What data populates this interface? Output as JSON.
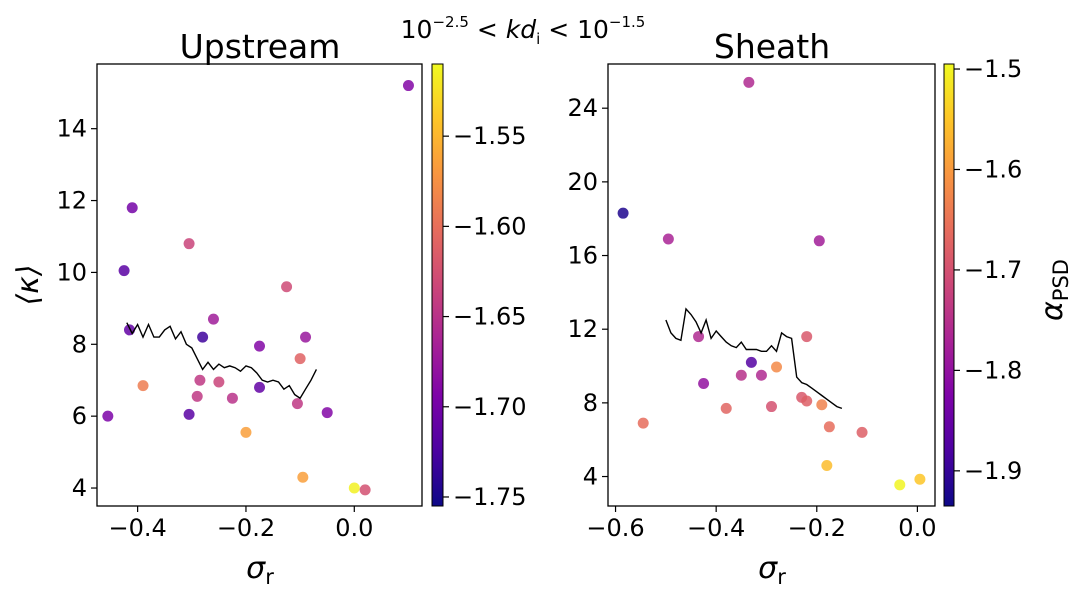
{
  "suptitle": {
    "base1": "10",
    "exp1": "−2.5",
    "mid": " < ",
    "var": "kd",
    "sub": "i",
    "base2": "10",
    "exp2": "−1.5"
  },
  "colormap": "plasma",
  "colors": {
    "line": "#000000",
    "axes": "#000000"
  },
  "chart_data": [
    {
      "type": "scatter",
      "title": "Upstream",
      "xlabel": "σ",
      "xlabel_sub": "r",
      "ylabel": "⟨κ⟩",
      "xlim": [
        -0.475,
        0.125
      ],
      "ylim": [
        3.5,
        15.8
      ],
      "xticks": [
        -0.4,
        -0.2,
        0.0
      ],
      "xtick_labels": [
        "−0.4",
        "−0.2",
        "0.0"
      ],
      "yticks": [
        4,
        6,
        8,
        10,
        12,
        14
      ],
      "ytick_labels": [
        "4",
        "6",
        "8",
        "10",
        "12",
        "14"
      ],
      "colorbar": {
        "label": "",
        "range": [
          -1.755,
          -1.51
        ],
        "ticks": [
          -1.75,
          -1.7,
          -1.65,
          -1.6,
          -1.55
        ],
        "tick_labels": [
          "−1.75",
          "−1.70",
          "−1.65",
          "−1.60",
          "−1.55"
        ]
      },
      "points": [
        {
          "x": 0.1,
          "y": 15.2,
          "c": -1.69
        },
        {
          "x": -0.41,
          "y": 11.8,
          "c": -1.7
        },
        {
          "x": -0.305,
          "y": 10.8,
          "c": -1.635
        },
        {
          "x": -0.425,
          "y": 10.05,
          "c": -1.715
        },
        {
          "x": -0.125,
          "y": 9.6,
          "c": -1.63
        },
        {
          "x": -0.26,
          "y": 8.7,
          "c": -1.67
        },
        {
          "x": -0.415,
          "y": 8.4,
          "c": -1.71
        },
        {
          "x": -0.09,
          "y": 8.2,
          "c": -1.675
        },
        {
          "x": -0.28,
          "y": 8.2,
          "c": -1.73
        },
        {
          "x": -0.175,
          "y": 7.95,
          "c": -1.69
        },
        {
          "x": -0.1,
          "y": 7.6,
          "c": -1.61
        },
        {
          "x": -0.285,
          "y": 7.0,
          "c": -1.645
        },
        {
          "x": -0.25,
          "y": 6.95,
          "c": -1.635
        },
        {
          "x": -0.39,
          "y": 6.85,
          "c": -1.59
        },
        {
          "x": -0.175,
          "y": 6.8,
          "c": -1.71
        },
        {
          "x": -0.29,
          "y": 6.55,
          "c": -1.645
        },
        {
          "x": -0.225,
          "y": 6.5,
          "c": -1.65
        },
        {
          "x": -0.105,
          "y": 6.35,
          "c": -1.645
        },
        {
          "x": -0.05,
          "y": 6.1,
          "c": -1.69
        },
        {
          "x": -0.455,
          "y": 6.0,
          "c": -1.695
        },
        {
          "x": -0.305,
          "y": 6.05,
          "c": -1.715
        },
        {
          "x": -0.2,
          "y": 5.55,
          "c": -1.565
        },
        {
          "x": -0.095,
          "y": 4.3,
          "c": -1.565
        },
        {
          "x": 0.0,
          "y": 4.0,
          "c": -1.515
        },
        {
          "x": 0.02,
          "y": 3.95,
          "c": -1.625
        }
      ],
      "line": {
        "x": [
          -0.42,
          -0.41,
          -0.4,
          -0.39,
          -0.38,
          -0.37,
          -0.36,
          -0.35,
          -0.34,
          -0.33,
          -0.32,
          -0.31,
          -0.3,
          -0.29,
          -0.28,
          -0.27,
          -0.26,
          -0.25,
          -0.24,
          -0.23,
          -0.22,
          -0.21,
          -0.2,
          -0.19,
          -0.18,
          -0.17,
          -0.16,
          -0.15,
          -0.14,
          -0.13,
          -0.12,
          -0.11,
          -0.1,
          -0.09,
          -0.08,
          -0.07
        ],
        "y": [
          8.6,
          8.3,
          8.55,
          8.2,
          8.55,
          8.2,
          8.2,
          8.4,
          8.5,
          8.15,
          8.35,
          8.0,
          7.9,
          7.6,
          7.3,
          7.5,
          7.3,
          7.45,
          7.35,
          7.4,
          7.35,
          7.25,
          7.4,
          7.35,
          7.2,
          7.0,
          6.95,
          7.0,
          6.95,
          6.75,
          6.85,
          6.6,
          6.5,
          6.75,
          7.0,
          7.3
        ]
      }
    },
    {
      "type": "scatter",
      "title": "Sheath",
      "xlabel": "σ",
      "xlabel_sub": "r",
      "ylabel": "",
      "xlim": [
        -0.615,
        0.035
      ],
      "ylim": [
        2.4,
        26.4
      ],
      "xticks": [
        -0.6,
        -0.4,
        -0.2,
        0.0
      ],
      "xtick_labels": [
        "−0.6",
        "−0.4",
        "−0.2",
        "0.0"
      ],
      "yticks": [
        4,
        8,
        12,
        16,
        20,
        24
      ],
      "ytick_labels": [
        "4",
        "8",
        "12",
        "16",
        "20",
        "24"
      ],
      "colorbar": {
        "label": "α",
        "label_sub": "PSD",
        "range": [
          -1.935,
          -1.495
        ],
        "ticks": [
          -1.9,
          -1.8,
          -1.7,
          -1.6,
          -1.5
        ],
        "tick_labels": [
          "−1.9",
          "−1.8",
          "−1.7",
          "−1.6",
          "−1.5"
        ]
      },
      "points": [
        {
          "x": -0.335,
          "y": 25.4,
          "c": -1.76
        },
        {
          "x": -0.585,
          "y": 18.3,
          "c": -1.92
        },
        {
          "x": -0.495,
          "y": 16.9,
          "c": -1.77
        },
        {
          "x": -0.195,
          "y": 16.8,
          "c": -1.78
        },
        {
          "x": -0.435,
          "y": 11.6,
          "c": -1.76
        },
        {
          "x": -0.22,
          "y": 11.6,
          "c": -1.69
        },
        {
          "x": -0.33,
          "y": 10.2,
          "c": -1.87
        },
        {
          "x": -0.35,
          "y": 9.5,
          "c": -1.75
        },
        {
          "x": -0.31,
          "y": 9.5,
          "c": -1.76
        },
        {
          "x": -0.28,
          "y": 9.95,
          "c": -1.62
        },
        {
          "x": -0.425,
          "y": 9.05,
          "c": -1.8
        },
        {
          "x": -0.23,
          "y": 8.3,
          "c": -1.69
        },
        {
          "x": -0.22,
          "y": 8.1,
          "c": -1.68
        },
        {
          "x": -0.19,
          "y": 7.9,
          "c": -1.63
        },
        {
          "x": -0.38,
          "y": 7.7,
          "c": -1.67
        },
        {
          "x": -0.29,
          "y": 7.8,
          "c": -1.7
        },
        {
          "x": -0.545,
          "y": 6.9,
          "c": -1.66
        },
        {
          "x": -0.175,
          "y": 6.7,
          "c": -1.66
        },
        {
          "x": -0.11,
          "y": 6.4,
          "c": -1.68
        },
        {
          "x": -0.18,
          "y": 4.6,
          "c": -1.56
        },
        {
          "x": 0.005,
          "y": 3.85,
          "c": -1.55
        },
        {
          "x": -0.035,
          "y": 3.55,
          "c": -1.5
        }
      ],
      "line": {
        "x": [
          -0.5,
          -0.49,
          -0.48,
          -0.47,
          -0.46,
          -0.45,
          -0.44,
          -0.43,
          -0.42,
          -0.41,
          -0.4,
          -0.39,
          -0.38,
          -0.37,
          -0.36,
          -0.35,
          -0.34,
          -0.33,
          -0.32,
          -0.31,
          -0.3,
          -0.29,
          -0.28,
          -0.27,
          -0.26,
          -0.25,
          -0.24,
          -0.23,
          -0.22,
          -0.21,
          -0.2,
          -0.19,
          -0.18,
          -0.17,
          -0.16,
          -0.15
        ],
        "y": [
          12.5,
          11.8,
          11.5,
          11.4,
          13.1,
          12.8,
          12.4,
          11.8,
          12.5,
          11.5,
          11.9,
          11.6,
          11.3,
          11.1,
          11.0,
          11.3,
          10.9,
          10.9,
          10.9,
          10.8,
          10.8,
          11.1,
          10.8,
          11.8,
          11.6,
          11.5,
          9.4,
          9.1,
          9.0,
          8.8,
          8.6,
          8.4,
          8.2,
          8.0,
          7.8,
          7.7
        ]
      }
    }
  ]
}
